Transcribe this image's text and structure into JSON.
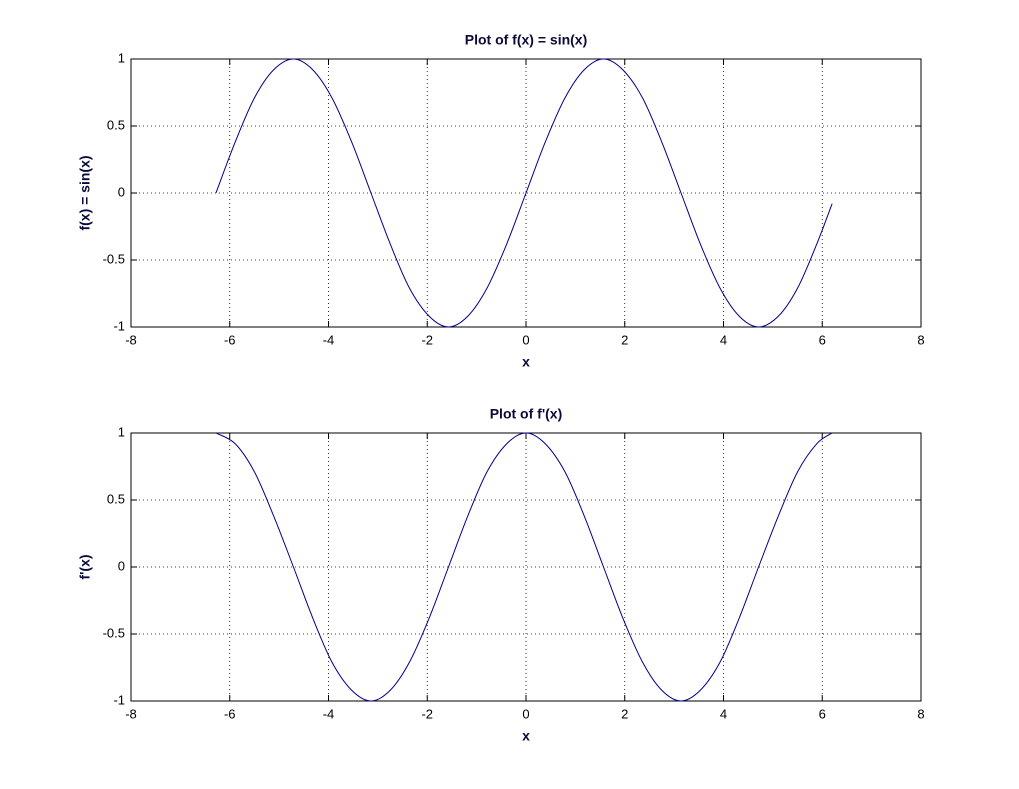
{
  "chart_data": [
    {
      "type": "line",
      "title": "Plot of f(x) = sin(x)",
      "xlabel": "x",
      "ylabel": "f(x) = sin(x)",
      "x": [
        -6.28,
        -5.89,
        -5.5,
        -5.11,
        -4.71,
        -4.32,
        -3.93,
        -3.53,
        -3.14,
        -2.75,
        -2.36,
        -1.96,
        -1.57,
        -1.18,
        -0.79,
        -0.39,
        0,
        0.39,
        0.79,
        1.18,
        1.57,
        1.96,
        2.36,
        2.75,
        3.14,
        3.53,
        3.93,
        4.32,
        4.71,
        5.11,
        5.5,
        5.89,
        6.2
      ],
      "series": [
        {
          "color": "#00008b",
          "values": [
            0,
            0.38,
            0.71,
            0.92,
            1,
            0.92,
            0.71,
            0.38,
            0,
            -0.38,
            -0.71,
            -0.92,
            -1,
            -0.92,
            -0.71,
            -0.38,
            0,
            0.38,
            0.71,
            0.92,
            1,
            0.92,
            0.71,
            0.38,
            0,
            -0.38,
            -0.71,
            -0.92,
            -1,
            -0.92,
            -0.71,
            -0.38,
            -0.08
          ]
        }
      ],
      "xlim": [
        -8,
        8
      ],
      "xticks": [
        -8,
        -6,
        -4,
        -2,
        0,
        2,
        4,
        6,
        8
      ],
      "ylim": [
        -1,
        1
      ],
      "yticks": [
        -1,
        -0.5,
        0,
        0.5,
        1
      ],
      "grid": true
    },
    {
      "type": "line",
      "title": "Plot of f'(x)",
      "xlabel": "x",
      "ylabel": "f'(x)",
      "x": [
        -6.28,
        -5.89,
        -5.5,
        -5.11,
        -4.71,
        -4.32,
        -3.93,
        -3.53,
        -3.14,
        -2.75,
        -2.36,
        -1.96,
        -1.57,
        -1.18,
        -0.79,
        -0.39,
        0,
        0.39,
        0.79,
        1.18,
        1.57,
        1.96,
        2.36,
        2.75,
        3.14,
        3.53,
        3.93,
        4.32,
        4.71,
        5.11,
        5.5,
        5.89,
        6.2
      ],
      "series": [
        {
          "color": "#00008b",
          "values": [
            1,
            0.92,
            0.71,
            0.38,
            0,
            -0.38,
            -0.71,
            -0.92,
            -1,
            -0.92,
            -0.71,
            -0.38,
            0,
            0.38,
            0.71,
            0.92,
            1,
            0.92,
            0.71,
            0.38,
            0,
            -0.38,
            -0.71,
            -0.92,
            -1,
            -0.92,
            -0.71,
            -0.38,
            0,
            0.38,
            0.71,
            0.92,
            1
          ]
        }
      ],
      "xlim": [
        -8,
        8
      ],
      "xticks": [
        -8,
        -6,
        -4,
        -2,
        0,
        2,
        4,
        6,
        8
      ],
      "ylim": [
        -1,
        1
      ],
      "yticks": [
        -1,
        -0.5,
        0,
        0.5,
        1
      ],
      "grid": true
    }
  ]
}
